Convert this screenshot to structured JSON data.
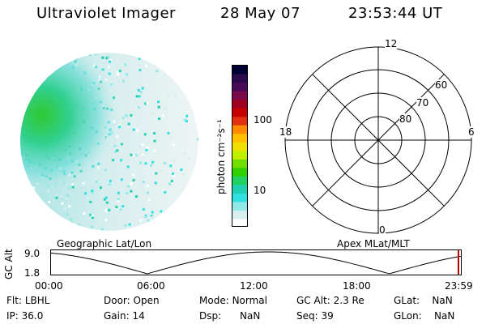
{
  "header": {
    "instrument": "Ultraviolet Imager",
    "date": "28 May 07",
    "time": "23:53:44 UT"
  },
  "colorbar": {
    "label": "photon cm⁻²s⁻¹",
    "ticks": [
      "100",
      "10"
    ],
    "colors": [
      "#000033",
      "#2a0a4a",
      "#4a0a5a",
      "#7a0a4a",
      "#a00020",
      "#c80000",
      "#e03010",
      "#ff8c00",
      "#ffc000",
      "#f0e000",
      "#c0f000",
      "#70e000",
      "#30d000",
      "#20d060",
      "#20d0b0",
      "#30e0e0",
      "#90e8e8",
      "#d8eeee",
      "#ffffff"
    ]
  },
  "polar": {
    "labels": {
      "top": "12",
      "bottom": "0",
      "left": "18",
      "right": "6"
    },
    "rings": [
      "80",
      "70",
      "60"
    ]
  },
  "timeline": {
    "left_title": "Geographic Lat/Lon",
    "right_title": "Apex MLat/MLT",
    "axis_label": "GC Alt",
    "y_ticks": [
      "9.0",
      "1.8"
    ],
    "x_ticks": [
      "00:00",
      "06:00",
      "12:00",
      "18:00",
      "23:59"
    ]
  },
  "info": {
    "row1": [
      {
        "label": "Flt:",
        "value": "LBHL"
      },
      {
        "label": "Door:",
        "value": "Open"
      },
      {
        "label": "Mode:",
        "value": "Normal"
      },
      {
        "label": "GC Alt:",
        "value": "2.3 Re"
      },
      {
        "label": "GLat:",
        "value": "NaN"
      }
    ],
    "row2": [
      {
        "label": "IP:",
        "value": "36.0"
      },
      {
        "label": "Gain:",
        "value": "14"
      },
      {
        "label": "Dsp:",
        "value": "NaN"
      },
      {
        "label": "Seq:",
        "value": "39"
      },
      {
        "label": "GLon:",
        "value": "NaN"
      }
    ]
  }
}
